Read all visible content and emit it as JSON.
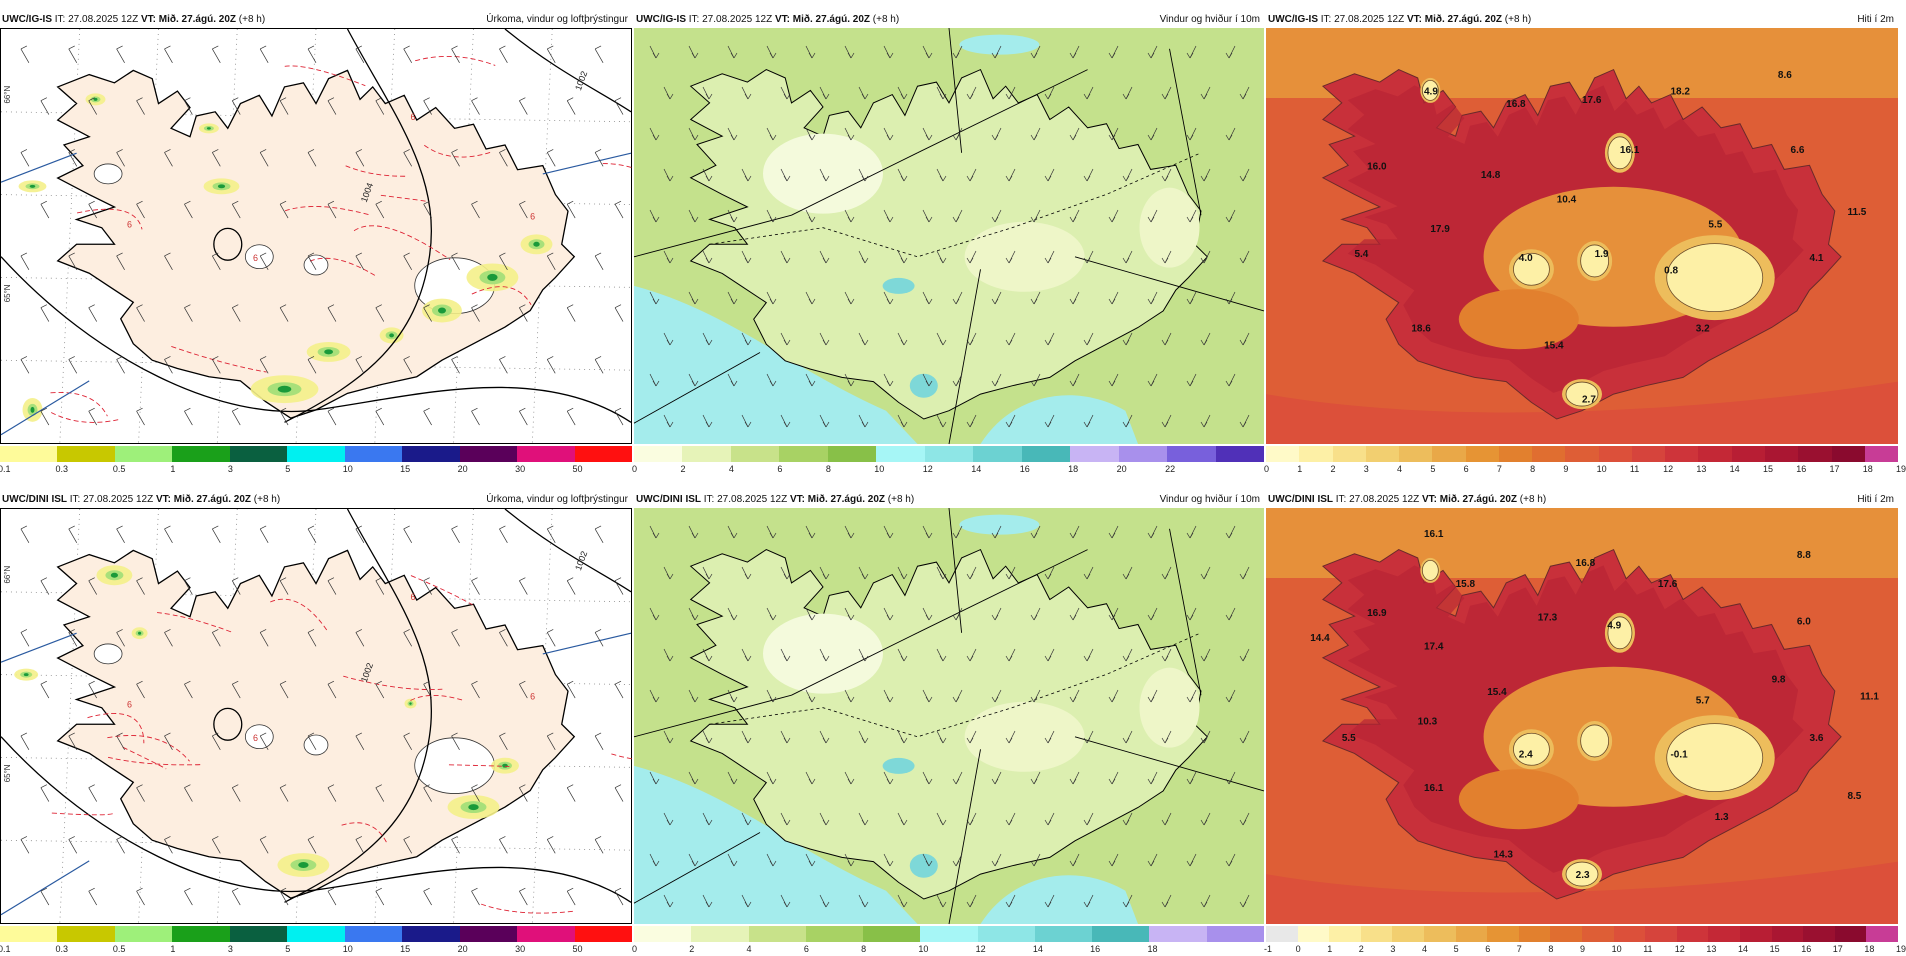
{
  "rows": [
    {
      "model": "UWC/IG-IS",
      "panels": [
        {
          "type": "precip",
          "it_label": "IT: 27.08.2025 12Z",
          "vt_label": "VT:",
          "vt_value": "Mið. 27.ágú. 20Z",
          "offset": "(+8 h)",
          "title": "Úrkoma, vindur og loftþrýstingur",
          "isobar_labels": [
            "1004",
            "1002"
          ],
          "temp_labels": [
            "6",
            "6",
            "6",
            "6"
          ],
          "lat_labels": [
            "66°N",
            "65°N"
          ],
          "colorbar": {
            "colors": [
              "#fefb9a",
              "#c8c800",
              "#9ef07a",
              "#1aa01a",
              "#0a6040",
              "#00f0f0",
              "#3a78f0",
              "#1a1a8a",
              "#5a005a",
              "#e0107a",
              "#ff1010"
            ],
            "ticks": [
              "0.1",
              "0.3",
              "0.5",
              "1",
              "3",
              "5",
              "10",
              "15",
              "20",
              "30",
              "50"
            ]
          }
        },
        {
          "type": "wind",
          "it_label": "IT: 27.08.2025 12Z",
          "vt_label": "VT:",
          "vt_value": "Mið. 27.ágú. 20Z",
          "offset": "(+8 h)",
          "title": "Vindur og hviður í 10m",
          "colorbar": {
            "colors": [
              "#fafde0",
              "#e6f3b8",
              "#c8e28a",
              "#a8d264",
              "#88c048",
              "#a6f6f6",
              "#8ee6e6",
              "#6cd2d2",
              "#48b8b8",
              "#c8b4f4",
              "#a890ec",
              "#7860dc",
              "#5030b8"
            ],
            "ticks": [
              "0",
              "2",
              "4",
              "6",
              "8",
              "10",
              "12",
              "14",
              "16",
              "18",
              "20",
              "22"
            ]
          }
        },
        {
          "type": "temp",
          "it_label": "IT: 27.08.2025 12Z",
          "vt_label": "VT:",
          "vt_value": "Mið. 27.ágú. 20Z",
          "offset": "(+8 h)",
          "title": "Hiti í 2m",
          "temp_values": [
            "4.9",
            "16.8",
            "17.6",
            "18.2",
            "8.6",
            "16.0",
            "14.8",
            "16.1",
            "6.6",
            "10.4",
            "17.9",
            "5.5",
            "11.5",
            "5.4",
            "4.0",
            "1.9",
            "0.8",
            "4.1",
            "18.6",
            "3.2",
            "15.4",
            "2.7"
          ],
          "colorbar": {
            "colors": [
              "#fffac8",
              "#fdf0a6",
              "#f8e08a",
              "#f2cf70",
              "#edbd5c",
              "#e9a848",
              "#e69434",
              "#e2802e",
              "#e06e30",
              "#de5e36",
              "#dc503a",
              "#d6443c",
              "#ce343a",
              "#c42836",
              "#b81e34",
              "#aa1632",
              "#9a1030",
              "#8a0a2e",
              "#c83c96"
            ],
            "ticks": [
              "0",
              "1",
              "2",
              "3",
              "4",
              "5",
              "6",
              "7",
              "8",
              "9",
              "10",
              "11",
              "12",
              "13",
              "14",
              "15",
              "16",
              "17",
              "18",
              "19"
            ]
          }
        }
      ]
    },
    {
      "model": "UWC/DINI ISL",
      "panels": [
        {
          "type": "precip",
          "it_label": "IT: 27.08.2025 12Z",
          "vt_label": "VT:",
          "vt_value": "Mið. 27.ágú. 20Z",
          "offset": "(+8 h)",
          "title": "Úrkoma, vindur og loftþrýstingur",
          "isobar_labels": [
            "1002",
            "1002"
          ],
          "temp_labels": [
            "6",
            "6",
            "6",
            "6"
          ],
          "lat_labels": [
            "66°N",
            "65°N"
          ],
          "colorbar": {
            "colors": [
              "#fefb9a",
              "#c8c800",
              "#9ef07a",
              "#1aa01a",
              "#0a6040",
              "#00f0f0",
              "#3a78f0",
              "#1a1a8a",
              "#5a005a",
              "#e0107a",
              "#ff1010"
            ],
            "ticks": [
              "0.1",
              "0.3",
              "0.5",
              "1",
              "3",
              "5",
              "10",
              "15",
              "20",
              "30",
              "50"
            ]
          }
        },
        {
          "type": "wind",
          "it_label": "IT: 27.08.2025 12Z",
          "vt_label": "VT:",
          "vt_value": "Mið. 27.ágú. 20Z",
          "offset": "(+8 h)",
          "title": "Vindur og hviður í 10m",
          "colorbar": {
            "colors": [
              "#fafde0",
              "#e6f3b8",
              "#c8e28a",
              "#a8d264",
              "#88c048",
              "#a6f6f6",
              "#8ee6e6",
              "#6cd2d2",
              "#48b8b8",
              "#c8b4f4",
              "#a890ec"
            ],
            "ticks": [
              "0",
              "2",
              "4",
              "6",
              "8",
              "10",
              "12",
              "14",
              "16",
              "18"
            ]
          }
        },
        {
          "type": "temp",
          "it_label": "IT: 27.08.2025 12Z",
          "vt_label": "VT:",
          "vt_value": "Mið. 27.ágú. 20Z",
          "offset": "(+8 h)",
          "title": "Hiti í 2m",
          "temp_values": [
            "16.1",
            "16.8",
            "8.8",
            "15.8",
            "17.6",
            "16.9",
            "17.3",
            "4.9",
            "6.0",
            "14.4",
            "17.4",
            "9.8",
            "15.4",
            "5.7",
            "11.1",
            "10.3",
            "5.5",
            "2.4",
            "-0.1",
            "3.6",
            "16.1",
            "8.5",
            "1.3",
            "14.3",
            "2.3"
          ],
          "colorbar": {
            "colors": [
              "#e8e8e8",
              "#fffac8",
              "#fdf0a6",
              "#f8e08a",
              "#f2cf70",
              "#edbd5c",
              "#e9a848",
              "#e69434",
              "#e2802e",
              "#e06e30",
              "#de5e36",
              "#dc503a",
              "#d6443c",
              "#ce343a",
              "#c42836",
              "#b81e34",
              "#aa1632",
              "#9a1030",
              "#8a0a2e",
              "#c83c96"
            ],
            "ticks": [
              "-1",
              "0",
              "1",
              "2",
              "3",
              "4",
              "5",
              "6",
              "7",
              "8",
              "9",
              "10",
              "11",
              "12",
              "13",
              "14",
              "15",
              "16",
              "17",
              "18",
              "19"
            ]
          }
        }
      ]
    }
  ]
}
